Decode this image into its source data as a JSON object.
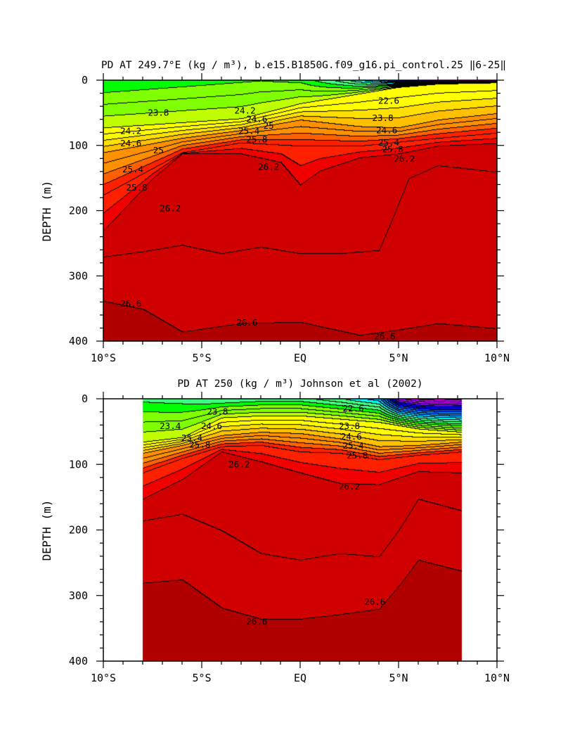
{
  "chart_data": [
    {
      "type": "contour",
      "title": "PD AT 249.7°E (kg / m³), b.e15.B1850G.f09_g16.pi_control.25 ‖6-25‖",
      "ylabel": "DEPTH (m)",
      "xlabel": "",
      "xlim": [
        -10,
        10
      ],
      "ylim": [
        400,
        0
      ],
      "x_ticks": [
        {
          "value": -10,
          "label": "10°S"
        },
        {
          "value": -5,
          "label": "5°S"
        },
        {
          "value": 0,
          "label": "EQ"
        },
        {
          "value": 5,
          "label": "5°N"
        },
        {
          "value": 10,
          "label": "10°N"
        }
      ],
      "y_ticks": [
        {
          "value": 0,
          "label": "0"
        },
        {
          "value": 100,
          "label": "100"
        },
        {
          "value": 200,
          "label": "200"
        },
        {
          "value": 300,
          "label": "300"
        },
        {
          "value": 400,
          "label": "400"
        }
      ],
      "data_x_range": [
        -10,
        10
      ],
      "contour_interval": 0.2,
      "contour_min": 20.6,
      "contour_max": 26.8,
      "surface_anchor_densities": {
        "x": [
          -10,
          -8,
          -6,
          -4,
          -2,
          0,
          2,
          4,
          6,
          8,
          10
        ],
        "rho": [
          23.4,
          23.45,
          23.5,
          23.55,
          23.6,
          23.55,
          23.15,
          22.6,
          21.6,
          20.9,
          20.8
        ]
      },
      "isopycnal_depths": [
        {
          "rho": 24.2,
          "x": [
            -10,
            -6,
            -3,
            0,
            3,
            5,
            7,
            10
          ],
          "depth": [
            72,
            64,
            58,
            35,
            20,
            10,
            5,
            3
          ]
        },
        {
          "rho": 25.0,
          "x": [
            -10,
            -6,
            -3,
            0,
            3,
            5,
            7,
            10
          ],
          "depth": [
            110,
            88,
            76,
            60,
            70,
            72,
            60,
            50
          ]
        },
        {
          "rho": 25.8,
          "x": [
            -10,
            -6,
            -3,
            0,
            3,
            5,
            7,
            10
          ],
          "depth": [
            175,
            110,
            95,
            100,
            100,
            94,
            88,
            80
          ]
        },
        {
          "rho": 26.2,
          "x": [
            -10,
            -7.5,
            -6,
            -3,
            -1,
            0,
            1,
            3,
            5,
            7,
            10
          ],
          "depth": [
            230,
            150,
            112,
            112,
            125,
            160,
            138,
            118,
            112,
            100,
            96
          ]
        },
        {
          "rho": 26.4,
          "x": [
            -10,
            -8,
            -6,
            -4,
            -2,
            0,
            2,
            4,
            4.7,
            5.5,
            7,
            10
          ],
          "depth": [
            270,
            262,
            252,
            265,
            255,
            265,
            265,
            260,
            210,
            150,
            130,
            140
          ]
        },
        {
          "rho": 26.6,
          "x": [
            -10,
            -8,
            -6,
            -3,
            0,
            3,
            5,
            7,
            10
          ],
          "depth": [
            338,
            350,
            385,
            372,
            370,
            390,
            382,
            372,
            380
          ]
        }
      ],
      "contour_labels": [
        {
          "text": "23.8",
          "x": -7.2,
          "y": 50
        },
        {
          "text": "24.2",
          "x": -2.8,
          "y": 47
        },
        {
          "text": "24.2",
          "x": -8.6,
          "y": 78
        },
        {
          "text": "24.6",
          "x": -2.2,
          "y": 60
        },
        {
          "text": "24.6",
          "x": -8.6,
          "y": 97
        },
        {
          "text": "25",
          "x": -1.6,
          "y": 70
        },
        {
          "text": "25",
          "x": -7.2,
          "y": 108
        },
        {
          "text": "25.4",
          "x": -2.6,
          "y": 78
        },
        {
          "text": "25.4",
          "x": -8.5,
          "y": 137
        },
        {
          "text": "25.8",
          "x": -2.2,
          "y": 91
        },
        {
          "text": "25.8",
          "x": -8.3,
          "y": 165
        },
        {
          "text": "26.2",
          "x": -1.6,
          "y": 133
        },
        {
          "text": "26.2",
          "x": -6.6,
          "y": 197
        },
        {
          "text": "26.2",
          "x": 5.3,
          "y": 121
        },
        {
          "text": "22.6",
          "x": 4.5,
          "y": 32
        },
        {
          "text": "23.8",
          "x": 4.2,
          "y": 58
        },
        {
          "text": "24.6",
          "x": 4.4,
          "y": 77
        },
        {
          "text": "25.4",
          "x": 4.5,
          "y": 96
        },
        {
          "text": "25.8",
          "x": 4.7,
          "y": 106
        },
        {
          "text": "26.6",
          "x": -8.6,
          "y": 343
        },
        {
          "text": "26.6",
          "x": -2.7,
          "y": 372
        },
        {
          "text": "26.6",
          "x": 4.3,
          "y": 393
        }
      ]
    },
    {
      "type": "contour",
      "title": "PD AT 250 (kg / m³) Johnson et al (2002)",
      "ylabel": "DEPTH (m)",
      "xlabel": "",
      "xlim": [
        -10,
        10
      ],
      "ylim": [
        400,
        0
      ],
      "x_ticks": [
        {
          "value": -10,
          "label": "10°S"
        },
        {
          "value": -5,
          "label": "5°S"
        },
        {
          "value": 0,
          "label": "EQ"
        },
        {
          "value": 5,
          "label": "5°N"
        },
        {
          "value": 10,
          "label": "10°N"
        }
      ],
      "y_ticks": [
        {
          "value": 0,
          "label": "0"
        },
        {
          "value": 100,
          "label": "100"
        },
        {
          "value": 200,
          "label": "200"
        },
        {
          "value": 300,
          "label": "300"
        },
        {
          "value": 400,
          "label": "400"
        }
      ],
      "data_x_range": [
        -8,
        8.2
      ],
      "contour_interval": 0.2,
      "contour_min": 20.6,
      "contour_max": 26.8,
      "surface_anchor_densities": {
        "x": [
          -8,
          -6,
          -4,
          -2,
          0,
          2,
          4,
          5,
          6,
          7,
          8.2
        ],
        "rho": [
          23.35,
          23.3,
          23.2,
          23.3,
          23.3,
          23.05,
          22.7,
          21.3,
          21.0,
          20.9,
          21.0
        ]
      },
      "isopycnal_depths": [
        {
          "rho": 24.2,
          "x": [
            -8,
            -6,
            -4,
            -2,
            0,
            2,
            4,
            6,
            8.2
          ],
          "depth": [
            65,
            58,
            28,
            25,
            25,
            30,
            35,
            45,
            50
          ]
        },
        {
          "rho": 25.0,
          "x": [
            -8,
            -6,
            -4,
            -2,
            0,
            2,
            4,
            6,
            8.2
          ],
          "depth": [
            82,
            70,
            55,
            50,
            52,
            60,
            72,
            70,
            65
          ]
        },
        {
          "rho": 25.8,
          "x": [
            -8,
            -6,
            -4,
            -2,
            0,
            2,
            4,
            6,
            8.2
          ],
          "depth": [
            112,
            90,
            72,
            70,
            80,
            82,
            92,
            85,
            80
          ]
        },
        {
          "rho": 26.2,
          "x": [
            -8,
            -6,
            -4,
            -2,
            0,
            2,
            4,
            6,
            8.2
          ],
          "depth": [
            152,
            122,
            80,
            95,
            112,
            128,
            130,
            110,
            112
          ]
        },
        {
          "rho": 26.4,
          "x": [
            -8,
            -6,
            -4,
            -2,
            0,
            2,
            4,
            5,
            6,
            8.2
          ],
          "depth": [
            185,
            175,
            200,
            235,
            245,
            235,
            240,
            200,
            152,
            170
          ]
        },
        {
          "rho": 26.6,
          "x": [
            -8,
            -6,
            -4,
            -2,
            0,
            2,
            4,
            5,
            6,
            8.2
          ],
          "depth": [
            280,
            275,
            318,
            335,
            335,
            328,
            320,
            285,
            245,
            262
          ]
        }
      ],
      "contour_labels": [
        {
          "text": "23.4",
          "x": -6.6,
          "y": 42
        },
        {
          "text": "23.8",
          "x": -4.2,
          "y": 20
        },
        {
          "text": "24.6",
          "x": -4.5,
          "y": 42
        },
        {
          "text": "25.4",
          "x": -5.5,
          "y": 60
        },
        {
          "text": "25.8",
          "x": -5.1,
          "y": 70
        },
        {
          "text": "26.2",
          "x": -3.1,
          "y": 100
        },
        {
          "text": "26.2",
          "x": 2.5,
          "y": 134
        },
        {
          "text": "22.6",
          "x": 2.7,
          "y": 15
        },
        {
          "text": "23.8",
          "x": 2.5,
          "y": 42
        },
        {
          "text": "24.6",
          "x": 2.6,
          "y": 58
        },
        {
          "text": "25.4",
          "x": 2.7,
          "y": 72
        },
        {
          "text": "25.8",
          "x": 2.9,
          "y": 87
        },
        {
          "text": "26.6",
          "x": -2.2,
          "y": 340
        },
        {
          "text": "26.6",
          "x": 3.8,
          "y": 310
        }
      ]
    }
  ],
  "colors": {
    "scale": [
      "#ff00ff",
      "#c000ff",
      "#8000ff",
      "#0000ff",
      "#0040ff",
      "#0080ff",
      "#00c0ff",
      "#00ffff",
      "#40ff80",
      "#00ff00",
      "#80ff00",
      "#c0ff00",
      "#ffff00",
      "#ffe000",
      "#ffc000",
      "#ff9000",
      "#ff6000",
      "#ff2000",
      "#f00000",
      "#d00000",
      "#b00000"
    ],
    "scale_min": 20.8,
    "scale_max": 26.8,
    "contour_line": "#000000",
    "axis": "#000000"
  }
}
